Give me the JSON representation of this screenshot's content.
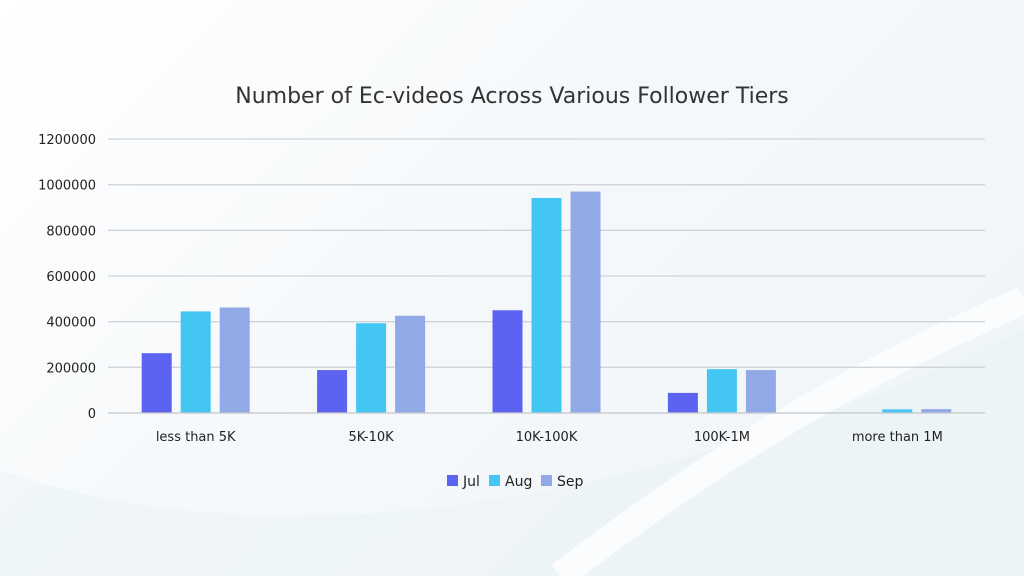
{
  "chart_data": {
    "type": "bar",
    "title": "Number of Ec-videos Across Various Follower Tiers",
    "categories": [
      "less than 5K",
      "5K-10K",
      "10K-100K",
      "100K-1M",
      "more than 1M"
    ],
    "series": [
      {
        "name": "Jul",
        "color": "#5b63f0",
        "values": [
          262000,
          188000,
          450000,
          88000,
          0
        ]
      },
      {
        "name": "Aug",
        "color": "#44c6f2",
        "values": [
          445000,
          393000,
          942000,
          192000,
          16000
        ]
      },
      {
        "name": "Sep",
        "color": "#91a9e6",
        "values": [
          462000,
          426000,
          970000,
          188000,
          17000
        ]
      }
    ],
    "ylim": [
      0,
      1200000
    ],
    "yticks": [
      "0",
      "200000",
      "400000",
      "600000",
      "800000",
      "1000000",
      "1200000"
    ],
    "grid": true,
    "legend_position": "bottom"
  }
}
